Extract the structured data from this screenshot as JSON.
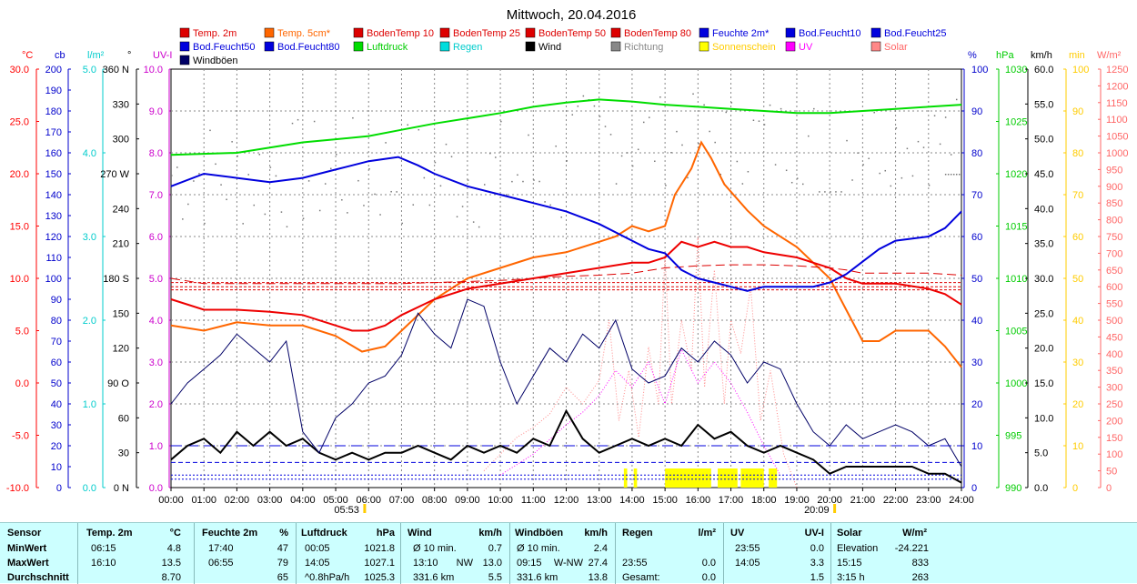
{
  "chart_data": {
    "type": "line",
    "title": "Mittwoch, 20.04.2016",
    "x_ticks": [
      "00:00",
      "01:00",
      "02:00",
      "03:00",
      "04:00",
      "05:00",
      "06:00",
      "07:00",
      "08:00",
      "09:00",
      "10:00",
      "11:00",
      "12:00",
      "13:00",
      "14:00",
      "15:00",
      "16:00",
      "17:00",
      "18:00",
      "19:00",
      "20:00",
      "21:00",
      "22:00",
      "23:00",
      "24:00"
    ],
    "sunrise": {
      "time": "05:53",
      "x": 5.88
    },
    "sunset": {
      "time": "20:09",
      "x": 20.15
    },
    "axes": [
      {
        "label": "°C",
        "color": "#ff0000",
        "ticks": [
          "30.0",
          "25.0",
          "20.0",
          "15.0",
          "10.0",
          "5.0",
          "0.0",
          "-5.0",
          "-10.0"
        ]
      },
      {
        "label": "cb",
        "color": "#0000cc",
        "ticks": [
          "200",
          "190",
          "180",
          "170",
          "160",
          "150",
          "140",
          "130",
          "120",
          "110",
          "100",
          "90",
          "80",
          "70",
          "60",
          "50",
          "40",
          "30",
          "20",
          "10",
          "0"
        ]
      },
      {
        "label": "l/m²",
        "color": "#00cccc",
        "ticks": [
          "5.0",
          "4.0",
          "3.0",
          "2.0",
          "1.0",
          "0.0"
        ]
      },
      {
        "label": "°",
        "color": "#000000",
        "ticks": [
          "360 N",
          "330",
          "300",
          "270 W",
          "240",
          "210",
          "180 S",
          "150",
          "120",
          "90  O",
          "60",
          "30",
          "0 N"
        ]
      },
      {
        "label": "UV-I",
        "color": "#cc00cc",
        "ticks": [
          "10.0",
          "9.0",
          "8.0",
          "7.0",
          "6.0",
          "5.0",
          "4.0",
          "3.0",
          "2.0",
          "1.0",
          "0.0"
        ]
      },
      {
        "label": "%",
        "color": "#0000cc",
        "ticks": [
          "100",
          "90",
          "80",
          "70",
          "60",
          "50",
          "40",
          "30",
          "20",
          "10",
          "0"
        ]
      },
      {
        "label": "hPa",
        "color": "#00cc00",
        "ticks": [
          "1030",
          "1025",
          "1020",
          "1015",
          "1010",
          "1005",
          "1000",
          "995",
          "990"
        ]
      },
      {
        "label": "km/h",
        "color": "#000000",
        "ticks": [
          "60.0",
          "55.0",
          "50.0",
          "45.0",
          "40.0",
          "35.0",
          "30.0",
          "25.0",
          "20.0",
          "15.0",
          "10.0",
          "5.0",
          "0.0"
        ]
      },
      {
        "label": "min",
        "color": "#ffcc00",
        "ticks": [
          "100",
          "90",
          "80",
          "70",
          "60",
          "50",
          "40",
          "30",
          "20",
          "10",
          "0"
        ]
      },
      {
        "label": "W/m²",
        "color": "#ff6666",
        "ticks": [
          "1250",
          "1200",
          "1150",
          "1100",
          "1050",
          "1000",
          "950",
          "900",
          "850",
          "800",
          "750",
          "700",
          "650",
          "600",
          "550",
          "500",
          "450",
          "400",
          "350",
          "300",
          "250",
          "200",
          "150",
          "100",
          "50",
          "0"
        ]
      }
    ],
    "legend": [
      {
        "name": "Temp. 2m",
        "color": "#dd0000",
        "text": "#dd0000"
      },
      {
        "name": "Temp. 5cm*",
        "color": "#ff6600",
        "text": "#ff6600"
      },
      {
        "name": "BodenTemp 10",
        "color": "#dd0000",
        "text": "#dd0000"
      },
      {
        "name": "BodenTemp 25",
        "color": "#dd0000",
        "text": "#dd0000"
      },
      {
        "name": "BodenTemp 50",
        "color": "#dd0000",
        "text": "#dd0000"
      },
      {
        "name": "BodenTemp 80",
        "color": "#dd0000",
        "text": "#dd0000"
      },
      {
        "name": "Feuchte 2m*",
        "color": "#0000dd",
        "text": "#0000dd"
      },
      {
        "name": "Bod.Feucht10",
        "color": "#0000dd",
        "text": "#0000dd"
      },
      {
        "name": "Bod.Feucht25",
        "color": "#0000dd",
        "text": "#0000dd"
      },
      {
        "name": "Bod.Feucht50",
        "color": "#0000dd",
        "text": "#0000dd"
      },
      {
        "name": "Bod.Feucht80",
        "color": "#0000dd",
        "text": "#0000dd"
      },
      {
        "name": "Luftdruck",
        "color": "#00dd00",
        "text": "#00cc00"
      },
      {
        "name": "Regen",
        "color": "#00dddd",
        "text": "#00cccc"
      },
      {
        "name": "Wind",
        "color": "#000000",
        "text": "#000000"
      },
      {
        "name": "Richtung",
        "color": "#888888",
        "text": "#888888"
      },
      {
        "name": "Sonnenschein",
        "color": "#ffff00",
        "text": "#ffcc00"
      },
      {
        "name": "UV",
        "color": "#ff00ff",
        "text": "#ff00ff"
      },
      {
        "name": "Solar",
        "color": "#ff8888",
        "text": "#ff6666"
      },
      {
        "name": "Windböen",
        "color": "#000066",
        "text": "#000000"
      }
    ],
    "series": [
      {
        "name": "Temp. 5cm*",
        "axis": "°C",
        "color": "#ff6600",
        "x": [
          0,
          1,
          2,
          3,
          4,
          5,
          5.8,
          6.5,
          7,
          8,
          9,
          10,
          11,
          12,
          13,
          13.5,
          14,
          14.5,
          15,
          15.3,
          15.8,
          16.1,
          16.4,
          16.8,
          17.5,
          18,
          19,
          19.5,
          20,
          20.5,
          21,
          21.5,
          22,
          23,
          23.5,
          24
        ],
        "values": [
          5.5,
          5.0,
          5.8,
          5.5,
          5.5,
          4.5,
          3.0,
          3.5,
          5.0,
          8.0,
          10.0,
          11.0,
          12.0,
          12.5,
          13.5,
          14.0,
          15.0,
          14.5,
          15.0,
          18.0,
          20.5,
          23.0,
          21.5,
          19.0,
          16.5,
          15.0,
          13.0,
          11.5,
          10.0,
          7.0,
          4.0,
          4.0,
          5.0,
          5.0,
          3.5,
          1.5
        ]
      },
      {
        "name": "Temp. 2m",
        "axis": "°C",
        "color": "#ee0000",
        "x": [
          0,
          1,
          2,
          3,
          4,
          5,
          5.5,
          6,
          6.5,
          7,
          8,
          9,
          10,
          11,
          12,
          13,
          14,
          14.5,
          15,
          15.5,
          16,
          16.5,
          17,
          17.5,
          18,
          19,
          19.5,
          20,
          20.5,
          21,
          22,
          23,
          23.5,
          24
        ],
        "values": [
          8.0,
          7.0,
          7.0,
          6.8,
          6.5,
          5.5,
          5.0,
          5.0,
          5.5,
          6.5,
          8.0,
          9.0,
          9.5,
          10.0,
          10.5,
          11.0,
          11.5,
          11.5,
          12.0,
          13.5,
          13.0,
          13.5,
          13.0,
          13.0,
          12.5,
          12.0,
          11.5,
          11.0,
          10.0,
          9.5,
          9.5,
          9.0,
          8.5,
          7.5
        ]
      },
      {
        "name": "BodenTemp 10",
        "axis": "°C",
        "color": "#dd0000",
        "dash": "10,5",
        "x": [
          0,
          1,
          3,
          4,
          5,
          6,
          7,
          8,
          9,
          10,
          11,
          12,
          13,
          14,
          15,
          16,
          17,
          18,
          19,
          20,
          20.5,
          21,
          22,
          23,
          24
        ],
        "values": [
          10.0,
          9.5,
          9.5,
          9.5,
          9.5,
          9.5,
          9.5,
          9.6,
          9.7,
          9.8,
          10.0,
          10.2,
          10.3,
          10.5,
          11.0,
          11.2,
          11.3,
          11.3,
          11.2,
          11.0,
          10.8,
          10.5,
          10.5,
          10.5,
          10.3
        ]
      },
      {
        "name": "BodenTemp 25",
        "axis": "°C",
        "color": "#dd0000",
        "dash": "3,2",
        "x": [
          0,
          24
        ],
        "values": [
          9.6,
          9.6
        ]
      },
      {
        "name": "BodenTemp 50",
        "axis": "°C",
        "color": "#dd0000",
        "dash": "3,2",
        "x": [
          0,
          24
        ],
        "values": [
          9.2,
          9.2
        ]
      },
      {
        "name": "BodenTemp 80",
        "axis": "°C",
        "color": "#dd0000",
        "dash": "3,2",
        "x": [
          0,
          24
        ],
        "values": [
          8.9,
          8.9
        ]
      },
      {
        "name": "Feuchte 2m*",
        "axis": "%",
        "color": "#0000dd",
        "x": [
          0,
          1,
          2,
          3,
          4,
          5,
          6,
          6.9,
          7.5,
          8,
          9,
          10,
          11,
          12,
          13,
          14,
          14.5,
          15,
          15.5,
          16,
          16.5,
          17,
          17.5,
          18,
          19,
          19.5,
          20,
          20.5,
          21,
          21.5,
          22,
          23,
          23.5,
          24
        ],
        "values": [
          72,
          75,
          74,
          73,
          74,
          76,
          78,
          79,
          77,
          75,
          72,
          70,
          68,
          66,
          63,
          59,
          57,
          56,
          52,
          50,
          49,
          48,
          47,
          48,
          48,
          48,
          49,
          51,
          54,
          57,
          59,
          60,
          62,
          66
        ]
      },
      {
        "name": "Bod.Feucht10",
        "axis": "%",
        "color": "#0000dd",
        "dash": "2,2",
        "x": [
          0,
          24
        ],
        "values": [
          3,
          3
        ]
      },
      {
        "name": "Bod.Feucht25",
        "axis": "%",
        "color": "#0000dd",
        "dash": "5,3",
        "x": [
          0,
          24
        ],
        "values": [
          6,
          6
        ]
      },
      {
        "name": "Bod.Feucht50",
        "axis": "%",
        "color": "#0000dd",
        "dash": "12,6",
        "x": [
          0,
          24
        ],
        "values": [
          10,
          10
        ]
      },
      {
        "name": "Bod.Feucht80",
        "axis": "%",
        "color": "#0000dd",
        "dash": "2,2",
        "x": [
          0,
          24
        ],
        "values": [
          2,
          2
        ]
      },
      {
        "name": "Luftdruck",
        "axis": "hPa",
        "color": "#00dd00",
        "x": [
          0,
          2,
          3,
          4,
          5,
          6,
          7,
          8,
          9,
          10,
          11,
          12,
          13,
          14,
          15,
          16,
          17,
          18,
          19,
          20,
          21,
          22,
          23,
          24
        ],
        "values": [
          1021.8,
          1022.0,
          1022.5,
          1023.0,
          1023.3,
          1023.6,
          1024.2,
          1024.8,
          1025.3,
          1025.8,
          1026.4,
          1026.8,
          1027.1,
          1026.9,
          1026.6,
          1026.4,
          1026.2,
          1026.0,
          1025.8,
          1025.8,
          1026.0,
          1026.2,
          1026.4,
          1026.6
        ]
      },
      {
        "name": "Wind",
        "axis": "km/h",
        "color": "#000000",
        "x": [
          0,
          0.5,
          1,
          1.5,
          2,
          2.5,
          3,
          3.5,
          4,
          4.5,
          5,
          5.5,
          6,
          6.5,
          7,
          7.5,
          8,
          8.5,
          9,
          9.5,
          10,
          10.5,
          11,
          11.5,
          12,
          12.5,
          13,
          13.5,
          14,
          14.5,
          15,
          15.5,
          16,
          16.5,
          17,
          17.5,
          18,
          18.5,
          19,
          19.5,
          20,
          20.5,
          21,
          21.5,
          22,
          22.5,
          23,
          23.5,
          24
        ],
        "values": [
          4,
          6,
          7,
          5,
          8,
          6,
          8,
          6,
          7,
          5,
          4,
          5,
          4,
          5,
          5,
          6,
          5,
          4,
          6,
          5,
          6,
          5,
          7,
          6,
          11,
          7,
          5,
          6,
          7,
          6,
          7,
          6,
          9,
          7,
          8,
          6,
          5,
          6,
          5,
          4,
          2,
          3,
          3,
          3,
          3,
          3,
          2,
          2,
          0.7
        ]
      },
      {
        "name": "Windböen",
        "axis": "km/h",
        "color": "#000066",
        "x": [
          0,
          0.5,
          1,
          1.5,
          2,
          2.5,
          3,
          3.5,
          4,
          4.5,
          5,
          5.5,
          6,
          6.5,
          7,
          7.5,
          8,
          8.5,
          9,
          9.5,
          10,
          10.5,
          11,
          11.5,
          12,
          12.5,
          13,
          13.5,
          14,
          14.5,
          15,
          15.5,
          16,
          16.5,
          17,
          17.5,
          18,
          18.5,
          19,
          19.5,
          20,
          20.5,
          21,
          21.5,
          22,
          22.5,
          23,
          23.5,
          24
        ],
        "values": [
          12,
          15,
          17,
          19,
          22,
          20,
          18,
          21,
          8,
          5,
          10,
          12,
          15,
          16,
          19,
          25,
          22,
          20,
          27,
          26,
          18,
          12,
          16,
          20,
          18,
          22,
          20,
          24,
          17,
          15,
          16,
          20,
          18,
          21,
          19,
          15,
          18,
          17,
          12,
          8,
          6,
          9,
          7,
          8,
          9,
          8,
          6,
          7,
          3
        ]
      },
      {
        "name": "Richtung",
        "axis": "°",
        "color": "#888888"
      },
      {
        "name": "Sonnenschein",
        "axis": "min",
        "color": "#ffff00"
      },
      {
        "name": "UV",
        "axis": "UV-I",
        "color": "#ff00ff"
      },
      {
        "name": "Solar",
        "axis": "W/m²",
        "color": "#ff8888"
      }
    ]
  },
  "stats": {
    "header": [
      "Sensor",
      "Temp. 2m",
      "°C",
      "Feuchte 2m",
      "%",
      "Luftdruck",
      "hPa",
      "Wind",
      "km/h",
      "Windböen",
      "km/h",
      "Regen",
      "l/m²",
      "UV",
      "UV-I",
      "Solar",
      "W/m²"
    ],
    "rows": [
      {
        "label": "MinWert",
        "temp_time": "06:15",
        "temp_val": "4.8",
        "hum_time": "17:40",
        "hum_val": "47",
        "pres_time": "00:05",
        "pres_val": "1021.8",
        "wind_time": "Ø 10 min.",
        "wind_val": "0.7",
        "gust_time": "Ø 10 min.",
        "gust_val": "2.4",
        "rain_time": "",
        "rain_val": "",
        "uv_time": "23:55",
        "uv_val": "0.0",
        "solar_time": "Elevation",
        "solar_val": "-24.221"
      },
      {
        "label": "MaxWert",
        "temp_time": "16:10",
        "temp_val": "13.5",
        "hum_time": "06:55",
        "hum_val": "79",
        "pres_time": "14:05",
        "pres_val": "1027.1",
        "wind_time": "13:10",
        "wind_dir": "NW",
        "wind_val": "13.0",
        "gust_time": "09:15",
        "gust_dir": "W-NW",
        "gust_val": "27.4",
        "rain_time": "23:55",
        "rain_val": "0.0",
        "uv_time": "14:05",
        "uv_val": "3.3",
        "solar_time": "15:15",
        "solar_val": "833"
      },
      {
        "label": "Durchschnitt",
        "temp_time": "",
        "temp_val": "8.70",
        "hum_time": "",
        "hum_val": "65",
        "pres_time": "^0.8hPa/h",
        "pres_val": "1025.3",
        "wind_time": "331.6 km",
        "wind_val": "5.5",
        "gust_time": "331.6 km",
        "gust_val": "13.8",
        "rain_time": "Gesamt:",
        "rain_val": "0.0",
        "uv_time": "",
        "uv_val": "1.5",
        "solar_time": "3:15 h",
        "solar_val": "263"
      }
    ]
  }
}
